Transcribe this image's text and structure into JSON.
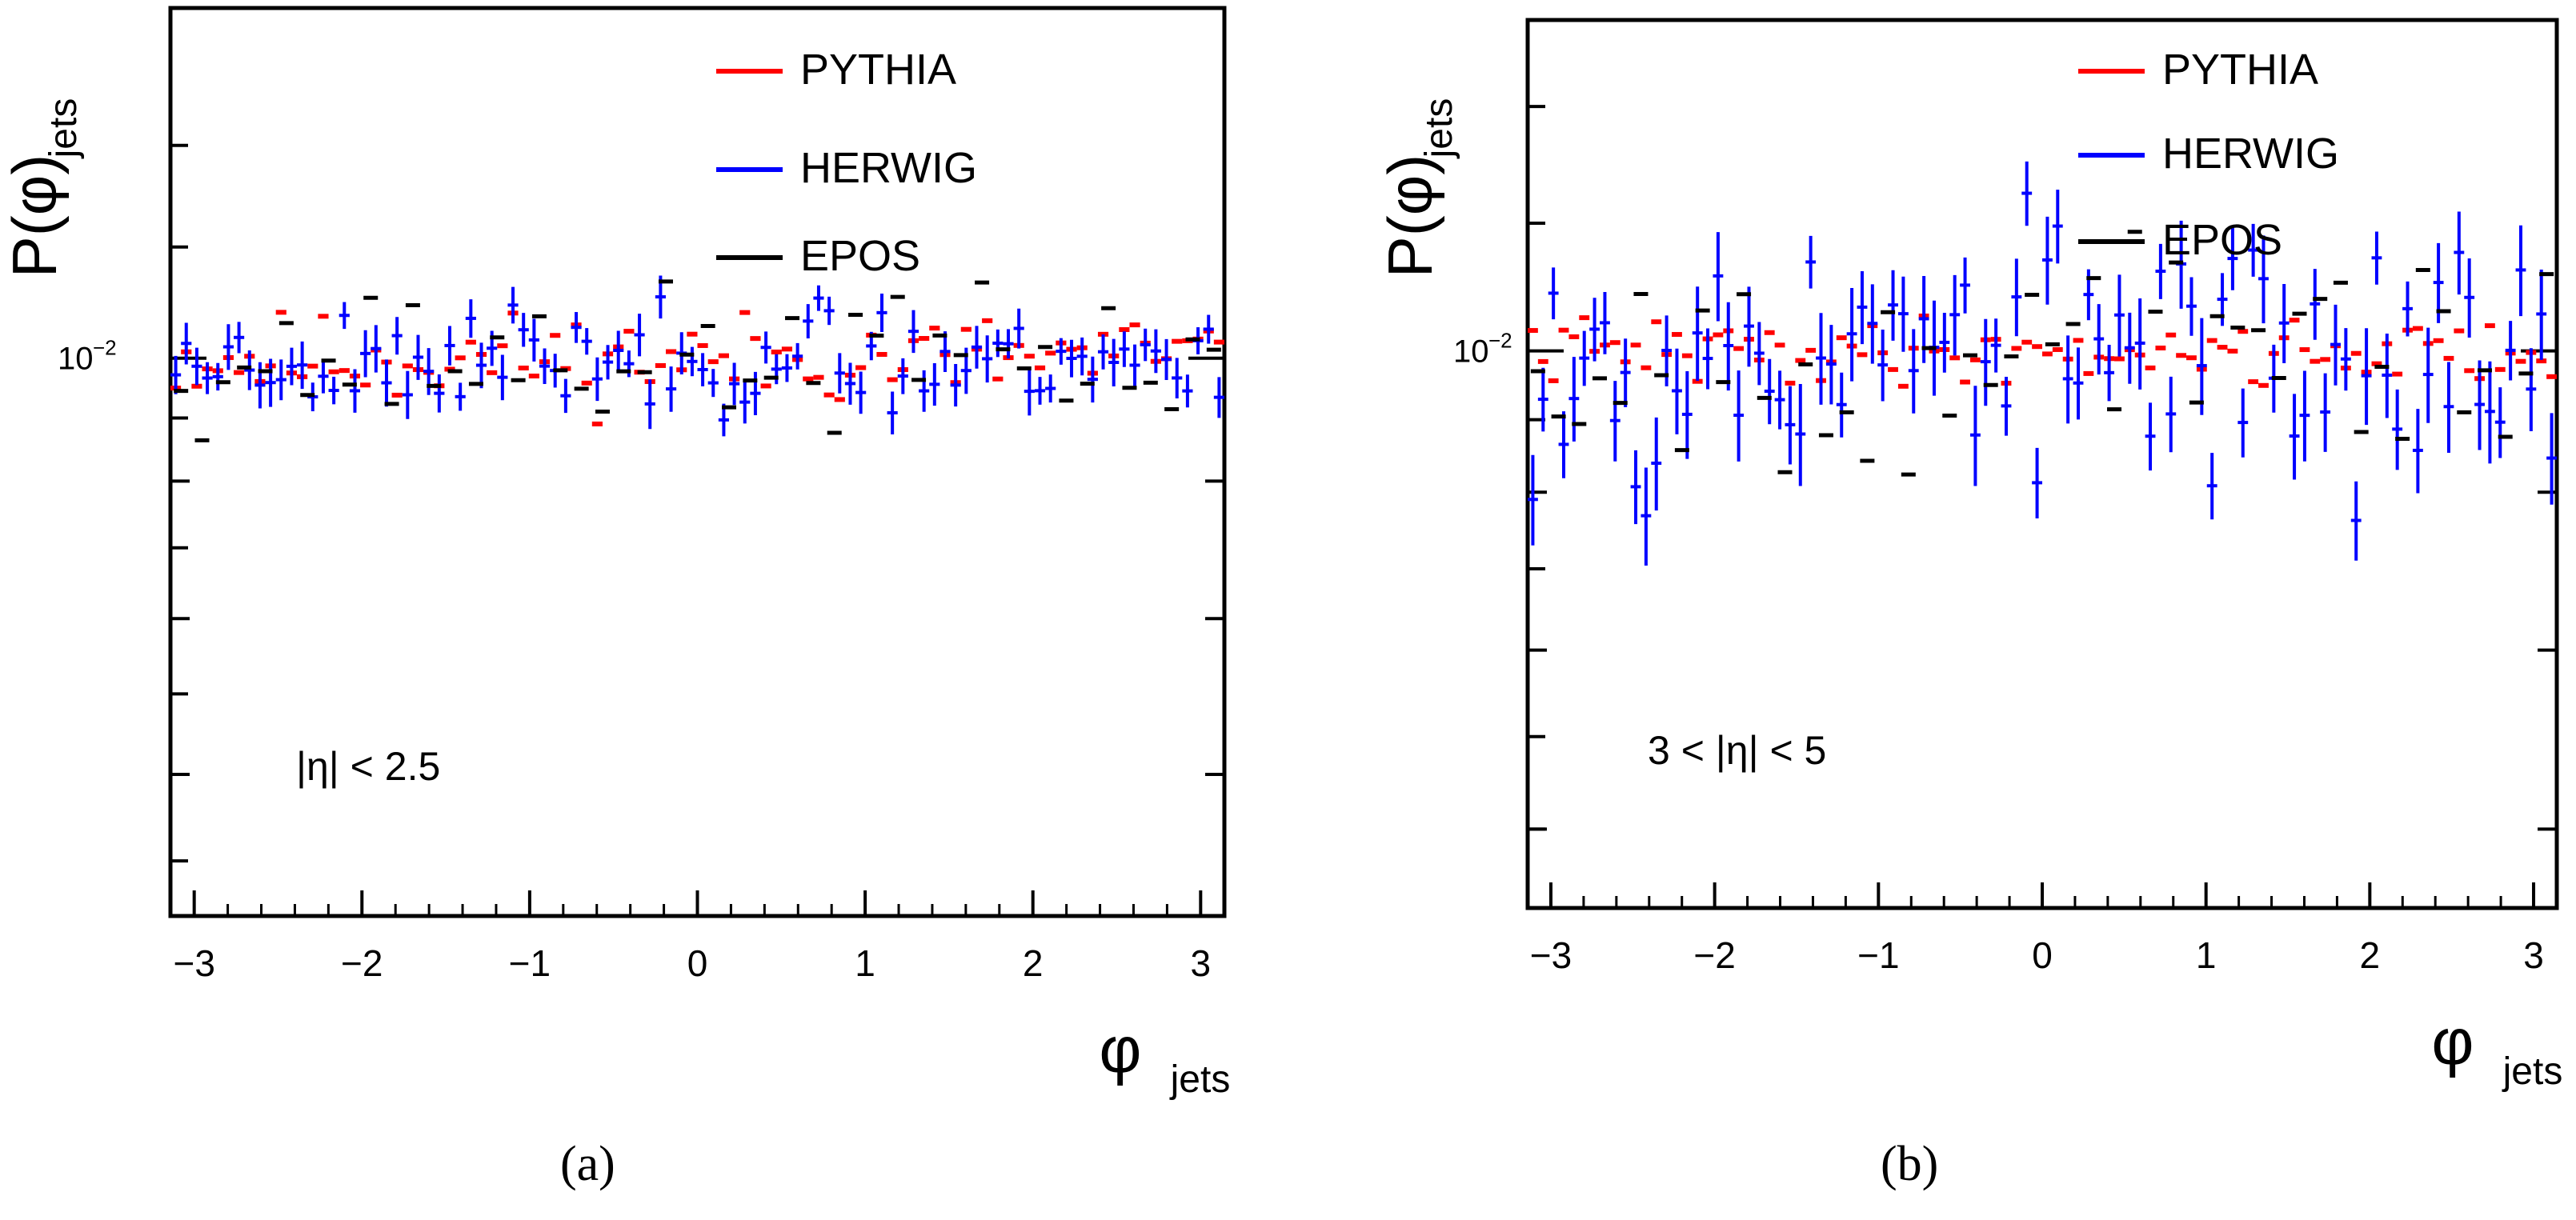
{
  "figure": {
    "captions": [
      "(a)",
      "(b)"
    ]
  },
  "colors": {
    "pythia": "#ff0000",
    "herwig": "#0000ff",
    "epos": "#000000"
  },
  "chart_data": [
    {
      "type": "scatter",
      "panel": "a",
      "title": "",
      "xlabel": "φ_jets",
      "xlabel_main": "φ",
      "xlabel_sub": "jets",
      "ylabel": "P(φ)_jets",
      "ylabel_main": "P(φ)",
      "ylabel_sub": "jets",
      "yscale": "log",
      "xlim": [
        -3.1416,
        3.1416
      ],
      "ylim": [
        0.0062,
        0.0135
      ],
      "xticks": [
        -3,
        -2,
        -1,
        0,
        1,
        2,
        3
      ],
      "xtick_labels": [
        "−3",
        "−2",
        "−1",
        "0",
        "1",
        "2",
        "3"
      ],
      "ytick_label_value": 0.01,
      "ytick_label_base": "10",
      "ytick_label_exp": "−2",
      "annotation": "|η| < 2.5",
      "legend": {
        "position": "top-right",
        "entries": [
          "PYTHIA",
          "HERWIG",
          "EPOS"
        ]
      },
      "series": [
        {
          "name": "PYTHIA",
          "style": "line",
          "nbins": 100,
          "value": 0.01,
          "noise": 0.0002,
          "seed": 11
        },
        {
          "name": "HERWIG",
          "style": "errorbar",
          "nbins": 100,
          "value": 0.01,
          "noise": 0.00022,
          "err": 0.00016,
          "seed": 23
        },
        {
          "name": "EPOS",
          "style": "dash",
          "nbins": 50,
          "value": 0.01,
          "noise": 0.0003,
          "seed": 37
        }
      ]
    },
    {
      "type": "scatter",
      "panel": "b",
      "title": "",
      "xlabel": "φ_jets",
      "xlabel_main": "φ",
      "xlabel_sub": "jets",
      "ylabel": "P(φ)_jets",
      "ylabel_main": "P(φ)",
      "ylabel_sub": "jets",
      "yscale": "log",
      "xlim": [
        -3.1416,
        3.1416
      ],
      "ylim": [
        0.0066,
        0.0128
      ],
      "xticks": [
        -3,
        -2,
        -1,
        0,
        1,
        2,
        3
      ],
      "xtick_labels": [
        "−3",
        "−2",
        "−1",
        "0",
        "1",
        "2",
        "3"
      ],
      "ytick_label_value": 0.01,
      "ytick_label_base": "10",
      "ytick_label_exp": "−2",
      "annotation": "3 < |η| < 5",
      "legend": {
        "position": "top-right",
        "entries": [
          "PYTHIA",
          "HERWIG",
          "EPOS"
        ]
      },
      "series": [
        {
          "name": "PYTHIA",
          "style": "line",
          "nbins": 100,
          "value": 0.01,
          "noise": 0.00012,
          "seed": 41
        },
        {
          "name": "HERWIG",
          "style": "errorbar",
          "nbins": 100,
          "value": 0.01,
          "noise": 0.0005,
          "err": 0.00028,
          "seed": 53
        },
        {
          "name": "EPOS",
          "style": "dash",
          "nbins": 50,
          "value": 0.01,
          "noise": 0.0004,
          "seed": 67
        }
      ]
    }
  ]
}
